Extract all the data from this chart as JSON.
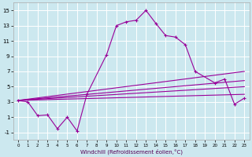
{
  "xlabel": "Windchill (Refroidissement éolien,°C)",
  "background_color": "#cce8ef",
  "grid_color": "#ffffff",
  "line_color": "#990099",
  "xlim": [
    -0.5,
    23.5
  ],
  "ylim": [
    -2.0,
    16.0
  ],
  "xticks": [
    0,
    1,
    2,
    3,
    4,
    5,
    6,
    7,
    8,
    9,
    10,
    11,
    12,
    13,
    14,
    15,
    16,
    17,
    18,
    19,
    20,
    21,
    22,
    23
  ],
  "yticks": [
    -1,
    1,
    3,
    5,
    7,
    9,
    11,
    13,
    15
  ],
  "main_series": {
    "x": [
      0,
      1,
      2,
      3,
      4,
      5,
      6,
      7,
      9,
      10,
      11,
      12,
      13,
      14,
      15,
      16,
      17,
      18,
      20,
      21,
      22,
      23
    ],
    "y": [
      3.2,
      3.0,
      1.2,
      1.3,
      -0.5,
      1.0,
      -0.8,
      4.0,
      9.2,
      13.0,
      13.5,
      13.7,
      15.0,
      13.3,
      11.7,
      11.5,
      10.5,
      7.0,
      5.5,
      6.0,
      2.7,
      3.5
    ]
  },
  "fan_lines": [
    {
      "x": [
        0,
        23
      ],
      "y": [
        3.2,
        7.0
      ]
    },
    {
      "x": [
        0,
        23
      ],
      "y": [
        3.2,
        5.8
      ]
    },
    {
      "x": [
        0,
        23
      ],
      "y": [
        3.2,
        5.0
      ]
    },
    {
      "x": [
        0,
        23
      ],
      "y": [
        3.2,
        4.0
      ]
    }
  ]
}
